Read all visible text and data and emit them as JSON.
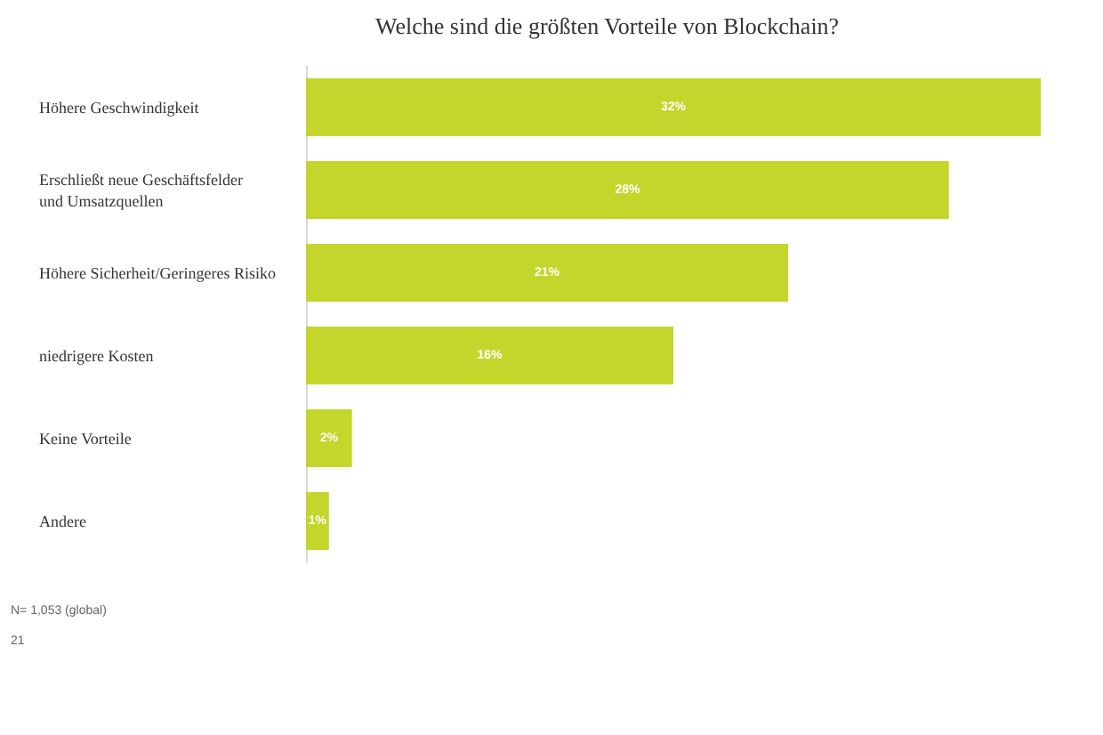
{
  "chart_data": {
    "type": "bar",
    "orientation": "horizontal",
    "title": "Welche sind die größten Vorteile von Blockchain?",
    "categories": [
      "Höhere Geschwindigkeit",
      "Erschließt neue Geschäftsfelder und Umsatzquellen",
      "Höhere Sicherheit/Geringeres Risiko",
      "niedrigere Kosten",
      "Keine Vorteile",
      "Andere"
    ],
    "values": [
      32,
      28,
      21,
      16,
      2,
      1
    ],
    "color": "#c4d62c",
    "value_labels": [
      "32%",
      "28%",
      "21%",
      "16%",
      "2%",
      "1%"
    ],
    "tick_labels": "y",
    "annotations": [
      "N= 1,053 (global)",
      "21"
    ]
  }
}
